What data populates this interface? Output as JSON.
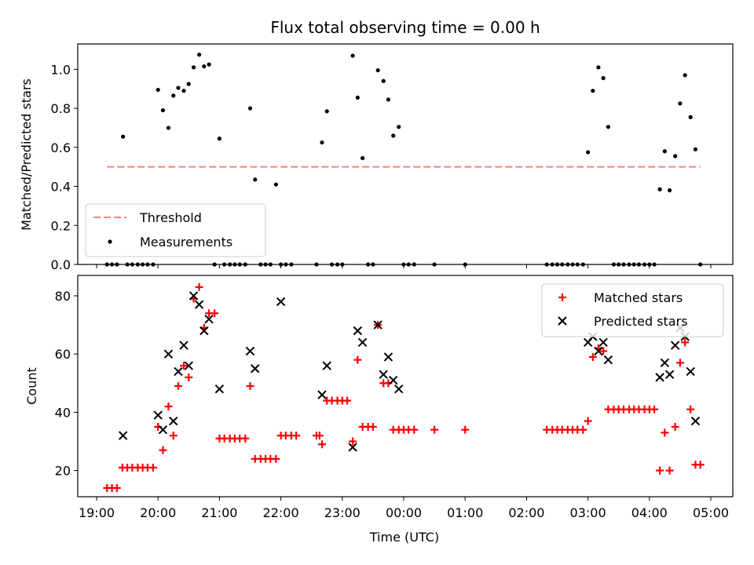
{
  "chart_data": [
    {
      "type": "scatter",
      "title": "Flux total observing time = 0.00 h",
      "ylabel": "Matched/Predicted stars",
      "xlabel": "",
      "xlim": [
        19.0,
        5.0
      ],
      "ylim": [
        0.0,
        1.13
      ],
      "y_ticks": [
        0.0,
        0.2,
        0.4,
        0.6,
        0.8,
        1.0
      ],
      "y_tick_labels": [
        "0.0",
        "0.2",
        "0.4",
        "0.6",
        "0.8",
        "1.0"
      ],
      "threshold": {
        "name": "Threshold",
        "value": 0.5,
        "x_range": [
          19.17,
          4.83
        ],
        "color": "#ff7f7f"
      },
      "series": [
        {
          "name": "Measurements",
          "color": "#000000",
          "points": [
            [
              19.17,
              0
            ],
            [
              19.25,
              0
            ],
            [
              19.33,
              0
            ],
            [
              19.43,
              0.655
            ],
            [
              19.5,
              0
            ],
            [
              19.58,
              0
            ],
            [
              19.67,
              0
            ],
            [
              19.75,
              0
            ],
            [
              19.83,
              0
            ],
            [
              19.92,
              0
            ],
            [
              20.0,
              0.895
            ],
            [
              20.08,
              0.79
            ],
            [
              20.17,
              0.7
            ],
            [
              20.25,
              0.865
            ],
            [
              20.33,
              0.905
            ],
            [
              20.42,
              0.89
            ],
            [
              20.5,
              0.925
            ],
            [
              20.58,
              1.01
            ],
            [
              20.67,
              1.075
            ],
            [
              20.75,
              1.015
            ],
            [
              20.83,
              1.025
            ],
            [
              20.92,
              0
            ],
            [
              21.0,
              0.645
            ],
            [
              21.08,
              0
            ],
            [
              21.17,
              0
            ],
            [
              21.25,
              0
            ],
            [
              21.33,
              0
            ],
            [
              21.42,
              0
            ],
            [
              21.5,
              0.8
            ],
            [
              21.58,
              0.435
            ],
            [
              21.67,
              0
            ],
            [
              21.75,
              0
            ],
            [
              21.83,
              0
            ],
            [
              21.92,
              0.41
            ],
            [
              22.0,
              0
            ],
            [
              22.08,
              0
            ],
            [
              22.17,
              0
            ],
            [
              22.58,
              0
            ],
            [
              22.67,
              0.625
            ],
            [
              22.75,
              0.785
            ],
            [
              22.83,
              0
            ],
            [
              22.92,
              0
            ],
            [
              23.0,
              0
            ],
            [
              23.17,
              1.07
            ],
            [
              23.25,
              0.855
            ],
            [
              23.33,
              0.545
            ],
            [
              23.42,
              0
            ],
            [
              23.5,
              0
            ],
            [
              23.58,
              0.995
            ],
            [
              23.67,
              0.94
            ],
            [
              23.75,
              0.845
            ],
            [
              23.83,
              0.66
            ],
            [
              23.92,
              0.705
            ],
            [
              24.0,
              0
            ],
            [
              24.08,
              0
            ],
            [
              24.17,
              0
            ],
            [
              24.5,
              0
            ],
            [
              25.0,
              0
            ],
            [
              26.33,
              0
            ],
            [
              26.42,
              0
            ],
            [
              26.5,
              0
            ],
            [
              26.58,
              0
            ],
            [
              26.67,
              0
            ],
            [
              26.75,
              0
            ],
            [
              26.83,
              0
            ],
            [
              26.92,
              0
            ],
            [
              27.0,
              0.575
            ],
            [
              27.08,
              0.89
            ],
            [
              27.17,
              1.01
            ],
            [
              27.25,
              0.955
            ],
            [
              27.33,
              0.705
            ],
            [
              27.42,
              0
            ],
            [
              27.5,
              0
            ],
            [
              27.58,
              0
            ],
            [
              27.67,
              0
            ],
            [
              27.75,
              0
            ],
            [
              27.83,
              0
            ],
            [
              27.92,
              0
            ],
            [
              28.0,
              0
            ],
            [
              28.08,
              0
            ],
            [
              28.17,
              0.385
            ],
            [
              28.25,
              0.58
            ],
            [
              28.33,
              0.38
            ],
            [
              28.42,
              0.555
            ],
            [
              28.5,
              0.825
            ],
            [
              28.58,
              0.97
            ],
            [
              28.67,
              0.755
            ],
            [
              28.75,
              0.59
            ],
            [
              28.83,
              0
            ]
          ]
        }
      ],
      "legend": {
        "position": "lower-left",
        "entries": [
          "Threshold",
          "Measurements"
        ]
      }
    },
    {
      "type": "scatter",
      "xlabel": "Time (UTC)",
      "ylabel": "Count",
      "xlim": [
        19.0,
        5.0
      ],
      "ylim": [
        11,
        87
      ],
      "y_ticks": [
        20,
        40,
        60,
        80
      ],
      "y_tick_labels": [
        "20",
        "40",
        "60",
        "80"
      ],
      "x_ticks": [
        19,
        20,
        21,
        22,
        23,
        24,
        25,
        26,
        27,
        28,
        29
      ],
      "x_tick_labels": [
        "19:00",
        "20:00",
        "21:00",
        "22:00",
        "23:00",
        "00:00",
        "01:00",
        "02:00",
        "03:00",
        "04:00",
        "05:00"
      ],
      "series": [
        {
          "name": "Matched stars",
          "marker": "plus",
          "color": "#ff0000",
          "points": [
            [
              19.17,
              14
            ],
            [
              19.25,
              14
            ],
            [
              19.33,
              14
            ],
            [
              19.42,
              21
            ],
            [
              19.5,
              21
            ],
            [
              19.58,
              21
            ],
            [
              19.67,
              21
            ],
            [
              19.75,
              21
            ],
            [
              19.83,
              21
            ],
            [
              19.92,
              21
            ],
            [
              20.0,
              35
            ],
            [
              20.08,
              27
            ],
            [
              20.17,
              42
            ],
            [
              20.25,
              32
            ],
            [
              20.33,
              49
            ],
            [
              20.42,
              56
            ],
            [
              20.5,
              52
            ],
            [
              20.58,
              79
            ],
            [
              20.67,
              83
            ],
            [
              20.75,
              69
            ],
            [
              20.83,
              74
            ],
            [
              20.92,
              74
            ],
            [
              21.0,
              31
            ],
            [
              21.08,
              31
            ],
            [
              21.17,
              31
            ],
            [
              21.25,
              31
            ],
            [
              21.33,
              31
            ],
            [
              21.42,
              31
            ],
            [
              21.5,
              49
            ],
            [
              21.58,
              24
            ],
            [
              21.67,
              24
            ],
            [
              21.75,
              24
            ],
            [
              21.83,
              24
            ],
            [
              21.92,
              24
            ],
            [
              22.0,
              32
            ],
            [
              22.08,
              32
            ],
            [
              22.17,
              32
            ],
            [
              22.25,
              32
            ],
            [
              22.58,
              32
            ],
            [
              22.63,
              32
            ],
            [
              22.67,
              29
            ],
            [
              22.75,
              44
            ],
            [
              22.83,
              44
            ],
            [
              22.92,
              44
            ],
            [
              23.0,
              44
            ],
            [
              23.08,
              44
            ],
            [
              23.17,
              30
            ],
            [
              23.25,
              58
            ],
            [
              23.33,
              35
            ],
            [
              23.42,
              35
            ],
            [
              23.5,
              35
            ],
            [
              23.58,
              70
            ],
            [
              23.67,
              50
            ],
            [
              23.75,
              50
            ],
            [
              23.83,
              34
            ],
            [
              23.92,
              34
            ],
            [
              24.0,
              34
            ],
            [
              24.08,
              34
            ],
            [
              24.17,
              34
            ],
            [
              24.5,
              34
            ],
            [
              25.0,
              34
            ],
            [
              26.33,
              34
            ],
            [
              26.42,
              34
            ],
            [
              26.5,
              34
            ],
            [
              26.58,
              34
            ],
            [
              26.67,
              34
            ],
            [
              26.75,
              34
            ],
            [
              26.83,
              34
            ],
            [
              26.92,
              34
            ],
            [
              27.0,
              37
            ],
            [
              27.08,
              59
            ],
            [
              27.17,
              62
            ],
            [
              27.25,
              61
            ],
            [
              27.33,
              41
            ],
            [
              27.42,
              41
            ],
            [
              27.5,
              41
            ],
            [
              27.58,
              41
            ],
            [
              27.67,
              41
            ],
            [
              27.75,
              41
            ],
            [
              27.83,
              41
            ],
            [
              27.92,
              41
            ],
            [
              28.0,
              41
            ],
            [
              28.08,
              41
            ],
            [
              28.17,
              20
            ],
            [
              28.25,
              33
            ],
            [
              28.33,
              20
            ],
            [
              28.42,
              35
            ],
            [
              28.5,
              57
            ],
            [
              28.58,
              64
            ],
            [
              28.67,
              41
            ],
            [
              28.75,
              22
            ],
            [
              28.83,
              22
            ]
          ]
        },
        {
          "name": "Predicted stars",
          "marker": "x",
          "color": "#000000",
          "points": [
            [
              19.43,
              32
            ],
            [
              20.0,
              39
            ],
            [
              20.08,
              34
            ],
            [
              20.17,
              60
            ],
            [
              20.25,
              37
            ],
            [
              20.33,
              54
            ],
            [
              20.42,
              63
            ],
            [
              20.5,
              56
            ],
            [
              20.58,
              80
            ],
            [
              20.67,
              77
            ],
            [
              20.75,
              68
            ],
            [
              20.83,
              72
            ],
            [
              21.0,
              48
            ],
            [
              21.5,
              61
            ],
            [
              21.58,
              55
            ],
            [
              22.0,
              78
            ],
            [
              22.67,
              46
            ],
            [
              22.75,
              56
            ],
            [
              23.17,
              28
            ],
            [
              23.25,
              68
            ],
            [
              23.33,
              64
            ],
            [
              23.58,
              70
            ],
            [
              23.67,
              53
            ],
            [
              23.75,
              59
            ],
            [
              23.83,
              51
            ],
            [
              23.92,
              48
            ],
            [
              27.0,
              64
            ],
            [
              27.08,
              66
            ],
            [
              27.17,
              61
            ],
            [
              27.25,
              64
            ],
            [
              27.33,
              58
            ],
            [
              28.17,
              52
            ],
            [
              28.25,
              57
            ],
            [
              28.33,
              53
            ],
            [
              28.42,
              63
            ],
            [
              28.5,
              69
            ],
            [
              28.58,
              66
            ],
            [
              28.67,
              54
            ],
            [
              28.75,
              37
            ]
          ]
        }
      ],
      "legend": {
        "position": "top-right",
        "entries": [
          "Matched stars",
          "Predicted stars"
        ]
      }
    }
  ]
}
